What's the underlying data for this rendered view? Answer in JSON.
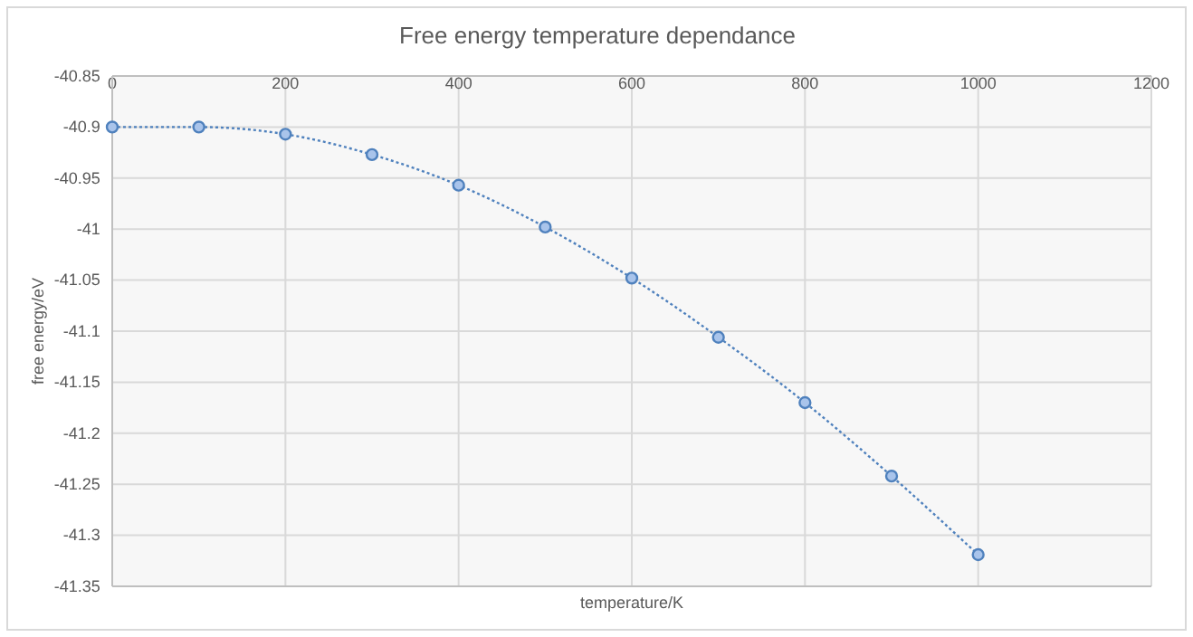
{
  "chart_data": {
    "type": "line",
    "title": "Free energy temperature dependance",
    "xlabel": "temperature/K",
    "ylabel": "free energy/eV",
    "x": [
      0,
      100,
      200,
      300,
      400,
      500,
      600,
      700,
      800,
      900,
      1000
    ],
    "series": [
      {
        "color": "#4f81bd",
        "values": [
          -40.9,
          -40.9,
          -40.907,
          -40.927,
          -40.957,
          -40.998,
          -41.048,
          -41.106,
          -41.17,
          -41.242,
          -41.319
        ]
      }
    ],
    "xlim": [
      0,
      1200
    ],
    "xticks": [
      0,
      200,
      400,
      600,
      800,
      1000,
      1200
    ],
    "ylim": [
      -41.35,
      -40.85
    ],
    "yticks": [
      -40.85,
      -40.9,
      -40.95,
      -41,
      -41.05,
      -41.1,
      -41.15,
      -41.2,
      -41.25,
      -41.3,
      -41.35
    ],
    "grid": true,
    "marker": "circle",
    "line_style": "dotted"
  }
}
